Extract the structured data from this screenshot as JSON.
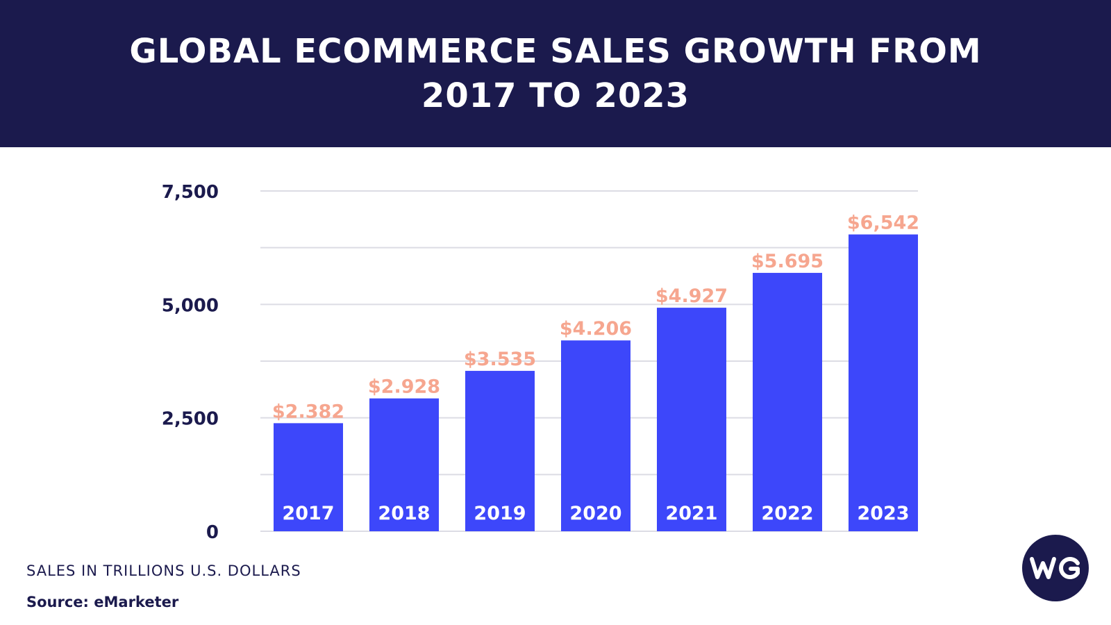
{
  "header": {
    "title": "GLOBAL ECOMMERCE SALES GROWTH FROM 2017 TO 2023"
  },
  "colors": {
    "header_bg": "#1b1a4d",
    "bar": "#3d47fa",
    "value_label": "#f6a68f",
    "gridline": "#dcdce4",
    "text_dark": "#1b1a4d"
  },
  "chart_data": {
    "type": "bar",
    "title": "GLOBAL ECOMMERCE SALES GROWTH FROM 2017 TO 2023",
    "xlabel": "",
    "ylabel": "",
    "categories": [
      "2017",
      "2018",
      "2019",
      "2020",
      "2021",
      "2022",
      "2023"
    ],
    "values": [
      2382,
      2928,
      3535,
      4206,
      4927,
      5695,
      6542
    ],
    "value_labels": [
      "$2.382",
      "$2.928",
      "$3.535",
      "$4.206",
      "$4.927",
      "$5.695",
      "$6,542"
    ],
    "yticks": [
      0,
      2500,
      5000,
      7500
    ],
    "ytick_labels": [
      "0",
      "2,500",
      "5,000",
      "7,500"
    ],
    "ylim": [
      0,
      7500
    ],
    "grid": true,
    "legend": "none"
  },
  "footer": {
    "note": "SALES IN TRILLIONS U.S. DOLLARS",
    "source": "Source: eMarketer"
  },
  "logo": {
    "text": "WG"
  }
}
